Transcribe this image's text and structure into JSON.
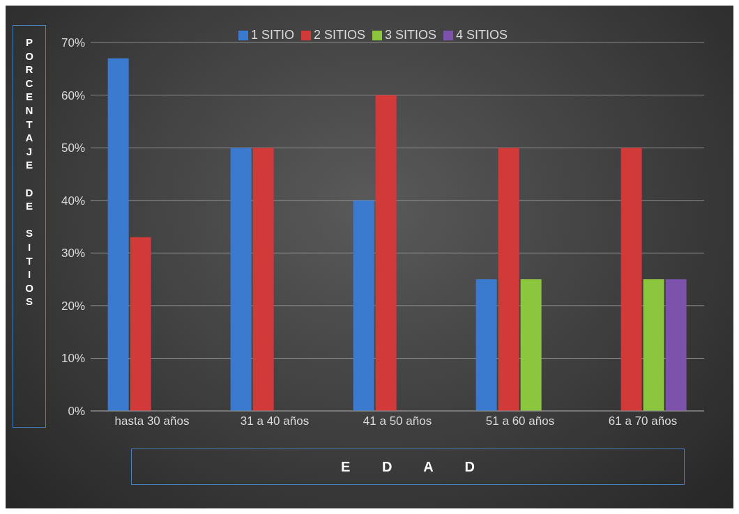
{
  "chart_data": {
    "type": "bar",
    "ylabel": "PORCENTAJE DE SITIOS",
    "xlabel": "E D A D",
    "categories": [
      "hasta 30 años",
      "31 a 40 años",
      "41 a 50 años",
      "51 a 60 años",
      "61 a 70 años"
    ],
    "series": [
      {
        "name": "1 SITIO",
        "color": "#3a7bd0",
        "values": [
          67,
          50,
          40,
          25,
          null
        ]
      },
      {
        "name": "2 SITIOS",
        "color": "#d23a3a",
        "values": [
          33,
          50,
          60,
          50,
          50
        ]
      },
      {
        "name": "3 SITIOS",
        "color": "#8cc63e",
        "values": [
          null,
          null,
          null,
          25,
          25
        ]
      },
      {
        "name": "4 SITIOS",
        "color": "#7d52aa",
        "values": [
          null,
          null,
          null,
          null,
          25
        ]
      }
    ],
    "ylim": [
      0,
      70
    ],
    "yticks": [
      {
        "value": 0,
        "label": "0%"
      },
      {
        "value": 10,
        "label": "10%"
      },
      {
        "value": 20,
        "label": "20%"
      },
      {
        "value": 30,
        "label": "30%"
      },
      {
        "value": 40,
        "label": "40%"
      },
      {
        "value": 50,
        "label": "50%"
      },
      {
        "value": 60,
        "label": "60%"
      },
      {
        "value": 70,
        "label": "70%"
      }
    ],
    "grid": "y",
    "legend": "top"
  }
}
